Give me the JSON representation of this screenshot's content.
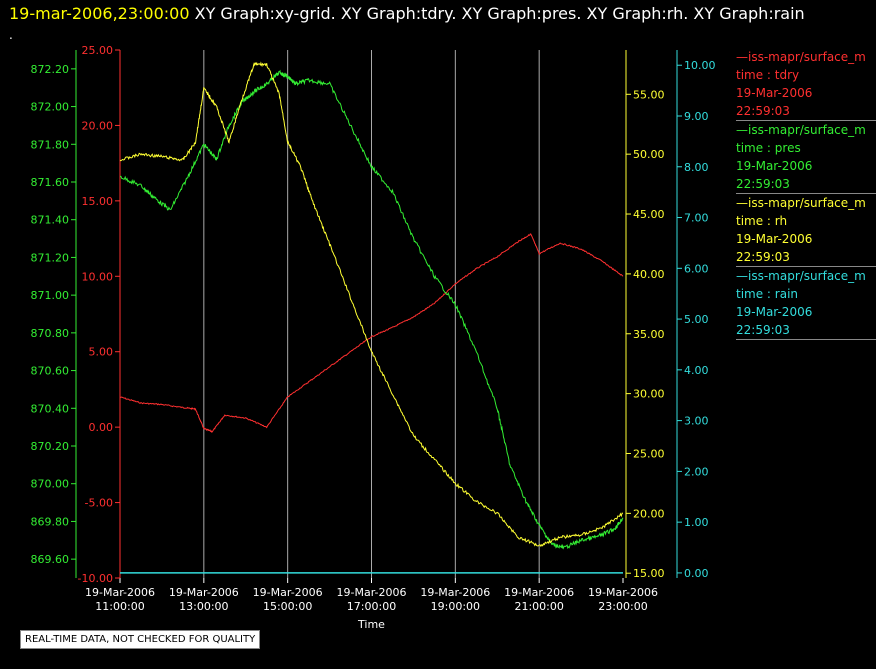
{
  "header": {
    "date": "19-mar-2006,23:00:00",
    "graphs": "XY Graph:xy-grid.  XY Graph:tdry.  XY Graph:pres.  XY Graph:rh.  XY Graph:rain",
    "dot": "."
  },
  "footer": {
    "notice": "REAL-TIME DATA, NOT CHECKED FOR QUALITY"
  },
  "legend": [
    {
      "name": "—iss-mapr/surface_m",
      "var": "time : tdry",
      "date": "19-Mar-2006",
      "time": "22:59:03",
      "color": "#ff3030"
    },
    {
      "name": "—iss-mapr/surface_m",
      "var": "time : pres",
      "date": "19-Mar-2006",
      "time": "22:59:03",
      "color": "#33ee33"
    },
    {
      "name": "—iss-mapr/surface_m",
      "var": "time : rh",
      "date": "19-Mar-2006",
      "time": "22:59:03",
      "color": "#ffff33"
    },
    {
      "name": "—iss-mapr/surface_m",
      "var": "time : rain",
      "date": "19-Mar-2006",
      "time": "22:59:03",
      "color": "#33dddd"
    }
  ],
  "chart_data": {
    "type": "line",
    "xlabel": "Time",
    "x_ticks": [
      [
        "19-Mar-2006",
        "11:00:00"
      ],
      [
        "19-Mar-2006",
        "13:00:00"
      ],
      [
        "19-Mar-2006",
        "15:00:00"
      ],
      [
        "19-Mar-2006",
        "17:00:00"
      ],
      [
        "19-Mar-2006",
        "19:00:00"
      ],
      [
        "19-Mar-2006",
        "21:00:00"
      ],
      [
        "19-Mar-2006",
        "23:00:00"
      ]
    ],
    "x_range_hours": [
      11,
      23
    ],
    "grid": "vertical",
    "colors": {
      "tdry": "#ff3030",
      "pres": "#33ee33",
      "rh": "#ffff33",
      "rain": "#33dddd",
      "grid": "#aaaaaa"
    },
    "axes": {
      "tdry": {
        "ylim": [
          -10,
          25
        ],
        "ticks": [
          "25.00",
          "20.00",
          "15.00",
          "10.00",
          "5.00",
          "0.00",
          "-5.00",
          "-10.00"
        ]
      },
      "pres": {
        "ylim": [
          869.5,
          872.3
        ],
        "ticks": [
          "872.20",
          "872.00",
          "871.80",
          "871.60",
          "871.40",
          "871.20",
          "871.00",
          "870.80",
          "870.60",
          "870.40",
          "870.20",
          "870.00",
          "869.80",
          "869.60"
        ]
      },
      "rh": {
        "ylim": [
          14.6,
          58.7
        ],
        "ticks": [
          "55.00",
          "50.00",
          "45.00",
          "40.00",
          "35.00",
          "30.00",
          "25.00",
          "20.00",
          "15.00"
        ]
      },
      "rain": {
        "ylim": [
          -0.1,
          10.3
        ],
        "ticks": [
          "10.00",
          "9.00",
          "8.00",
          "7.00",
          "6.00",
          "5.00",
          "4.00",
          "3.00",
          "2.00",
          "1.00",
          "0.00"
        ]
      }
    },
    "series": [
      {
        "name": "tdry",
        "x": [
          11.0,
          11.5,
          12.0,
          12.5,
          12.8,
          13.0,
          13.2,
          13.5,
          14.0,
          14.5,
          15.0,
          15.5,
          16.0,
          16.5,
          17.0,
          17.5,
          18.0,
          18.5,
          19.0,
          19.5,
          20.0,
          20.5,
          20.8,
          21.0,
          21.5,
          22.0,
          22.5,
          23.0
        ],
        "y": [
          2.0,
          1.6,
          1.5,
          1.3,
          1.2,
          -0.1,
          -0.3,
          0.8,
          0.6,
          0.0,
          2.0,
          3.0,
          4.0,
          5.0,
          6.0,
          6.6,
          7.3,
          8.2,
          9.5,
          10.5,
          11.3,
          12.3,
          12.8,
          11.5,
          12.2,
          11.8,
          11.0,
          10.0
        ]
      },
      {
        "name": "pres",
        "x": [
          11.0,
          11.5,
          11.8,
          12.2,
          12.6,
          13.0,
          13.3,
          13.6,
          13.9,
          14.2,
          14.5,
          14.8,
          15.0,
          15.2,
          15.5,
          16.0,
          16.5,
          17.0,
          17.5,
          18.0,
          18.5,
          19.0,
          19.5,
          20.0,
          20.3,
          20.7,
          21.0,
          21.3,
          21.6,
          22.0,
          22.4,
          22.8,
          23.0
        ],
        "y": [
          871.63,
          871.58,
          871.52,
          871.45,
          871.62,
          871.8,
          871.72,
          871.9,
          872.02,
          872.08,
          872.12,
          872.18,
          872.16,
          872.12,
          872.14,
          872.12,
          871.9,
          871.68,
          871.55,
          871.3,
          871.1,
          870.95,
          870.7,
          870.4,
          870.1,
          869.9,
          869.78,
          869.68,
          869.66,
          869.7,
          869.72,
          869.76,
          869.82
        ]
      },
      {
        "name": "rh",
        "x": [
          11.0,
          11.5,
          12.0,
          12.5,
          12.8,
          13.0,
          13.3,
          13.6,
          13.9,
          14.2,
          14.5,
          14.8,
          15.0,
          15.3,
          15.6,
          16.0,
          16.5,
          17.0,
          17.5,
          18.0,
          18.5,
          19.0,
          19.5,
          20.0,
          20.5,
          21.0,
          21.5,
          22.0,
          22.5,
          23.0
        ],
        "y": [
          49.5,
          50.0,
          49.8,
          49.5,
          51.0,
          55.5,
          54.0,
          51.0,
          54.5,
          57.5,
          57.5,
          55.0,
          51.0,
          49.0,
          46.0,
          42.5,
          38.0,
          33.5,
          30.0,
          26.5,
          24.5,
          22.5,
          21.0,
          20.0,
          18.0,
          17.3,
          18.0,
          18.2,
          18.8,
          20.0
        ]
      },
      {
        "name": "rain",
        "x": [
          11.0,
          23.0
        ],
        "y": [
          0.0,
          0.0
        ]
      }
    ]
  }
}
